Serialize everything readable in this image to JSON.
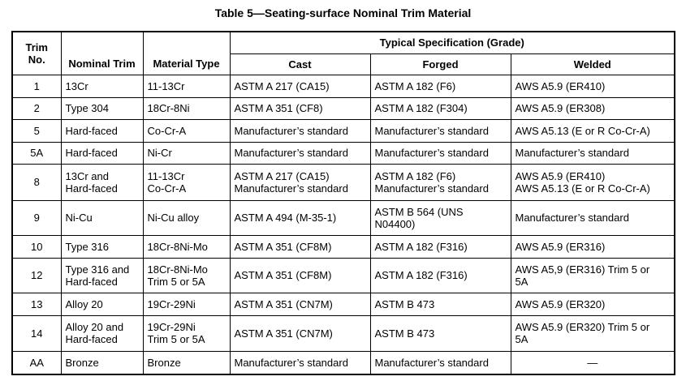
{
  "title": "Table 5—Seating-surface Nominal Trim Material",
  "header": {
    "trim_no": [
      "Trim",
      "No."
    ],
    "nominal_trim": "Nominal Trim",
    "material_type": "Material Type",
    "group": "Typical Specification (Grade)",
    "cast": "Cast",
    "forged": "Forged",
    "welded": "Welded"
  },
  "table": {
    "rows": [
      [
        "1",
        "13Cr",
        "11-13Cr",
        "ASTM A 217 (CA15)",
        "ASTM A 182 (F6)",
        "AWS A5.9 (ER410)"
      ],
      [
        "2",
        "Type 304",
        "18Cr-8Ni",
        "ASTM A 351 (CF8)",
        "ASTM A 182 (F304)",
        "AWS A5.9 (ER308)"
      ],
      [
        "5",
        "Hard-faced",
        "Co-Cr-A",
        "Manufacturer’s standard",
        "Manufacturer’s standard",
        "AWS A5.13 (E or R Co-Cr-A)"
      ],
      [
        "5A",
        "Hard-faced",
        "Ni-Cr",
        "Manufacturer’s standard",
        "Manufacturer’s standard",
        "Manufacturer’s standard"
      ],
      [
        "8",
        [
          "13Cr and",
          "Hard-faced"
        ],
        [
          "11-13Cr",
          "Co-Cr-A"
        ],
        [
          "ASTM A 217 (CA15)",
          "Manufacturer’s standard"
        ],
        [
          "ASTM A 182 (F6)",
          "Manufacturer’s standard"
        ],
        [
          "AWS A5.9 (ER410)",
          "AWS A5.13 (E or R Co-Cr-A)"
        ]
      ],
      [
        "9",
        "Ni-Cu",
        "Ni-Cu alloy",
        "ASTM A 494 (M-35-1)",
        [
          "ASTM B 564 (UNS",
          "N04400)"
        ],
        "Manufacturer’s standard"
      ],
      [
        "10",
        "Type 316",
        "18Cr-8Ni-Mo",
        "ASTM A 351 (CF8M)",
        "ASTM A 182 (F316)",
        "AWS A5.9 (ER316)"
      ],
      [
        "12",
        [
          "Type 316 and",
          "Hard-faced"
        ],
        [
          "18Cr-8Ni-Mo",
          "Trim 5 or 5A"
        ],
        "ASTM A 351 (CF8M)",
        "ASTM A 182 (F316)",
        [
          "AWS A5,9 (ER316) Trim 5 or",
          "5A"
        ]
      ],
      [
        "13",
        "Alloy 20",
        "19Cr-29Ni",
        "ASTM A 351 (CN7M)",
        "ASTM B 473",
        "AWS A5.9 (ER320)"
      ],
      [
        "14",
        [
          "Alloy 20 and",
          "Hard-faced"
        ],
        [
          "19Cr-29Ni",
          "Trim 5 or 5A"
        ],
        "ASTM A 351 (CN7M)",
        "ASTM B 473",
        [
          "AWS A5.9 (ER320) Trim 5 or",
          "5A"
        ]
      ],
      [
        "AA",
        "Bronze",
        "Bronze",
        "Manufacturer’s standard",
        "Manufacturer’s standard",
        "—"
      ]
    ]
  }
}
